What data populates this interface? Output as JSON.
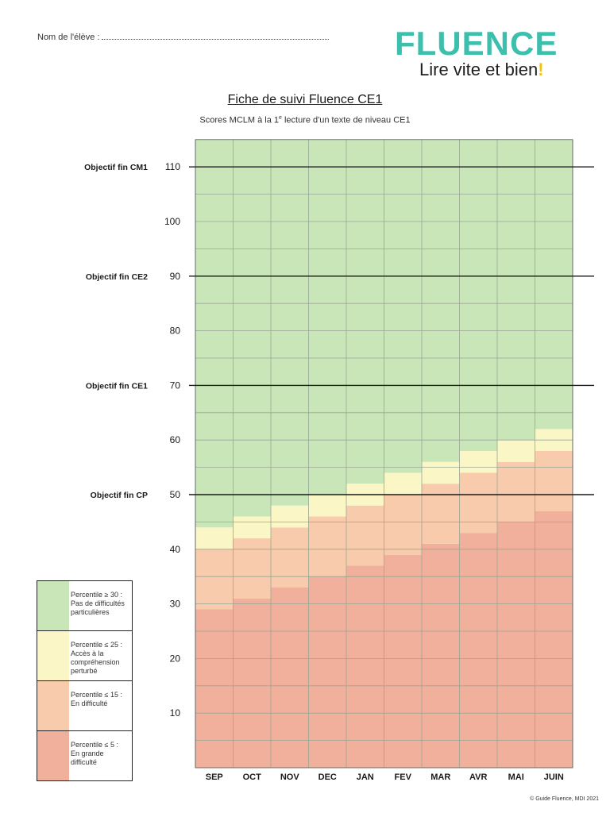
{
  "header": {
    "name_label": "Nom de l'élève :",
    "logo_word": "FLUENCE",
    "logo_tagline": "Lire vite et bien",
    "logo_bang": "!",
    "title": "Fiche de suivi Fluence CE1",
    "subtitle_pre": "Scores MCLM à la 1",
    "subtitle_sup": "e",
    "subtitle_post": " lecture d'un texte de niveau CE1"
  },
  "colors": {
    "green": "#c8e6b8",
    "yellow": "#faf6c6",
    "peach": "#f9cbad",
    "salmon": "#f0b09c",
    "grid_minor": "#9aa596",
    "grid_major": "#1a1a1a",
    "logo": "#3dbfad"
  },
  "chart_data": {
    "type": "area",
    "categories": [
      "SEP",
      "OCT",
      "NOV",
      "DEC",
      "JAN",
      "FEV",
      "MAR",
      "AVR",
      "MAI",
      "JUIN"
    ],
    "ylim": [
      0,
      115
    ],
    "yticks": [
      10,
      20,
      30,
      40,
      50,
      60,
      70,
      80,
      90,
      100,
      110
    ],
    "grid": true,
    "series": [
      {
        "name": "Percentile ≤ 5 : En grande difficulté",
        "values": [
          29,
          31,
          33,
          35,
          37,
          39,
          41,
          43,
          45,
          47
        ]
      },
      {
        "name": "Percentile ≤ 15 : En difficulté",
        "values": [
          40,
          42,
          44,
          46,
          48,
          50,
          52,
          54,
          56,
          58
        ]
      },
      {
        "name": "Percentile ≤ 25 : Accès à la compréhension perturbé",
        "values": [
          44,
          46,
          48,
          50,
          52,
          54,
          56,
          58,
          60,
          62
        ]
      },
      {
        "name": "Percentile ≥ 30 : Pas de difficultés particulières",
        "values": [
          115,
          115,
          115,
          115,
          115,
          115,
          115,
          115,
          115,
          115
        ]
      }
    ],
    "objectives": [
      {
        "label": "Objectif fin CM1",
        "value": 110
      },
      {
        "label": "Objectif fin CE2",
        "value": 90
      },
      {
        "label": "Objectif fin CE1",
        "value": 70
      },
      {
        "label": "Objectif fin CP",
        "value": 50
      }
    ]
  },
  "legend": {
    "items": [
      {
        "text": "Percentile ≥ 30 : Pas de difficultés particulières",
        "color": "#c8e6b8"
      },
      {
        "text": "Percentile ≤ 25 : Accès à la compréhension perturbé",
        "color": "#faf6c6"
      },
      {
        "text": "Percentile ≤ 15 : En difficulté",
        "color": "#f9cbad"
      },
      {
        "text": "Percentile ≤ 5 : En grande difficulté",
        "color": "#f0b09c"
      }
    ]
  },
  "footer": {
    "copyright": "© Guide Fluence, MDI 2021"
  }
}
